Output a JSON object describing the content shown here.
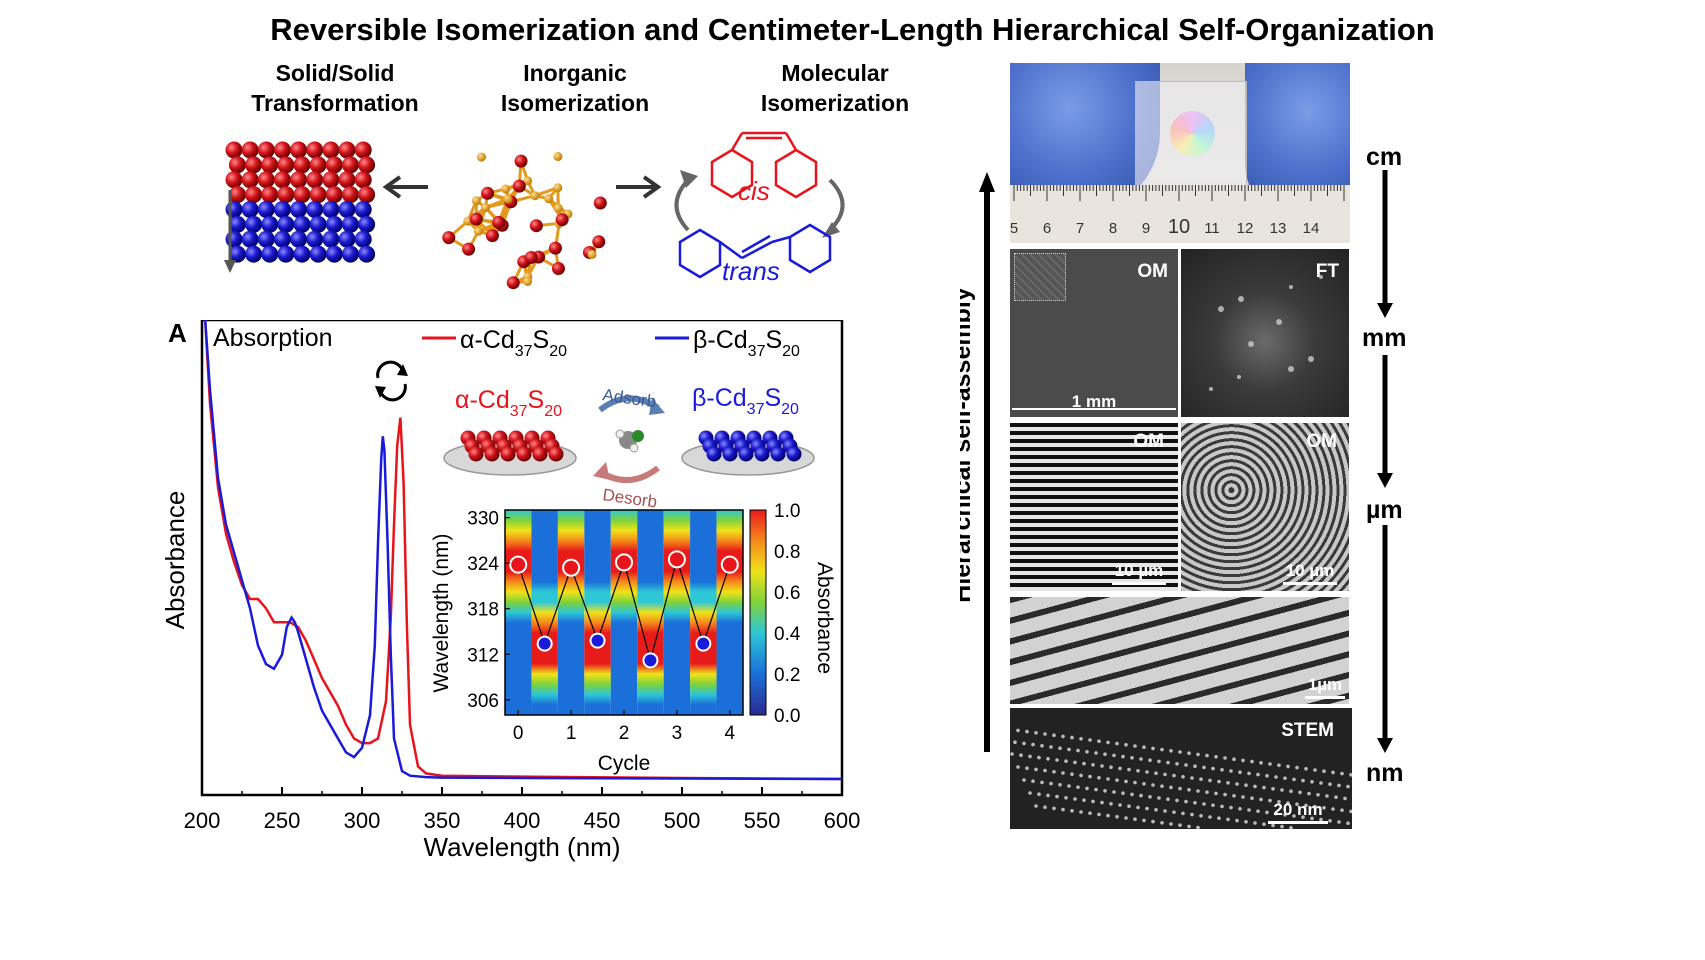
{
  "title": "Reversible Isomerization and Centimeter-Length Hierarchical Self-Organization",
  "top_labels": {
    "solid": "Solid/Solid\nTransformation",
    "inorganic": "Inorganic\nIsomerization",
    "molecular": "Molecular\nIsomerization",
    "cis": "cis",
    "trans": "trans"
  },
  "colors": {
    "alpha": "#e8141b",
    "beta": "#1a1adb",
    "red_ball": "#d4141b",
    "blue_ball": "#1b1bd0",
    "gold": "#e39a1c"
  },
  "chart_data": {
    "type": "line",
    "panel_label": "A",
    "title": "Absorption",
    "xlabel": "Wavelength (nm)",
    "ylabel": "Absorbance",
    "xlim": [
      200,
      600
    ],
    "xticks": [
      200,
      250,
      300,
      350,
      400,
      450,
      500,
      550,
      600
    ],
    "legend": [
      "α-Cd37S20",
      "β-Cd37S20"
    ],
    "legend_placement": "top",
    "series": [
      {
        "name": "α-Cd37S20",
        "color": "#e8141b",
        "x": [
          202,
          205,
          210,
          215,
          220,
          225,
          230,
          235,
          240,
          245,
          250,
          255,
          260,
          265,
          270,
          275,
          280,
          285,
          290,
          295,
          300,
          305,
          310,
          315,
          318,
          320,
          322,
          324,
          326,
          328,
          330,
          335,
          340,
          350,
          400,
          500,
          600
        ],
        "y": [
          1.0,
          0.82,
          0.64,
          0.54,
          0.48,
          0.43,
          0.4,
          0.4,
          0.38,
          0.35,
          0.35,
          0.35,
          0.34,
          0.31,
          0.27,
          0.23,
          0.2,
          0.17,
          0.13,
          0.1,
          0.09,
          0.09,
          0.1,
          0.18,
          0.36,
          0.56,
          0.73,
          0.79,
          0.65,
          0.35,
          0.13,
          0.04,
          0.025,
          0.02,
          0.018,
          0.015,
          0.013
        ]
      },
      {
        "name": "β-Cd37S20",
        "color": "#1a1adb",
        "x": [
          202,
          205,
          210,
          215,
          220,
          225,
          230,
          235,
          240,
          245,
          250,
          253,
          256,
          258,
          260,
          265,
          270,
          275,
          280,
          285,
          290,
          295,
          300,
          305,
          308,
          310,
          312,
          313,
          314,
          316,
          318,
          320,
          325,
          330,
          340,
          350,
          400,
          500,
          600
        ],
        "y": [
          1.0,
          0.85,
          0.66,
          0.56,
          0.5,
          0.44,
          0.38,
          0.3,
          0.26,
          0.25,
          0.28,
          0.34,
          0.36,
          0.35,
          0.33,
          0.27,
          0.21,
          0.16,
          0.13,
          0.1,
          0.07,
          0.06,
          0.08,
          0.15,
          0.3,
          0.52,
          0.7,
          0.75,
          0.72,
          0.52,
          0.28,
          0.1,
          0.03,
          0.02,
          0.017,
          0.016,
          0.015,
          0.014,
          0.013
        ]
      }
    ],
    "inset_top": {
      "alpha_label": "α-Cd37S20",
      "beta_label": "β-Cd37S20",
      "adsorb": "Adsorb",
      "desorb": "Desorb"
    },
    "inset": {
      "type": "heatmap",
      "xlabel": "Cycle",
      "ylabel": "Wavelength (nm)",
      "colorbar_label": "Absorbance",
      "xticks": [
        0,
        1,
        2,
        3,
        4
      ],
      "yticks": [
        306,
        312,
        318,
        324,
        330
      ],
      "ylim": [
        304,
        331
      ],
      "xlim": [
        -0.25,
        4.25
      ],
      "cbar_ticks": [
        "0.0",
        "0.2",
        "0.4",
        "0.6",
        "0.8",
        "1.0"
      ],
      "points": [
        {
          "x": 0,
          "y": 323.8,
          "phase": "alpha"
        },
        {
          "x": 0.5,
          "y": 313.4,
          "phase": "beta"
        },
        {
          "x": 1,
          "y": 323.4,
          "phase": "alpha"
        },
        {
          "x": 1.5,
          "y": 313.8,
          "phase": "beta"
        },
        {
          "x": 2,
          "y": 324.1,
          "phase": "alpha"
        },
        {
          "x": 2.5,
          "y": 311.2,
          "phase": "beta"
        },
        {
          "x": 3,
          "y": 324.5,
          "phase": "alpha"
        },
        {
          "x": 3.5,
          "y": 313.4,
          "phase": "beta"
        },
        {
          "x": 4,
          "y": 323.8,
          "phase": "alpha"
        }
      ]
    }
  },
  "right": {
    "axis_label": "Hierarchical self-assembly",
    "units": [
      "cm",
      "mm",
      "µm",
      "nm"
    ],
    "ruler_numbers": [
      "5",
      "6",
      "7",
      "8",
      "9",
      "10",
      "11",
      "12",
      "13",
      "14"
    ],
    "panels": {
      "om1": "OM",
      "ft": "FT",
      "om2": "OM",
      "om3": "OM",
      "stem": "STEM"
    },
    "scalebars": {
      "mm": "1 mm",
      "um1": "10 µm",
      "um2": "10 µm",
      "um3": "1µm",
      "nm": "20 nm"
    }
  }
}
